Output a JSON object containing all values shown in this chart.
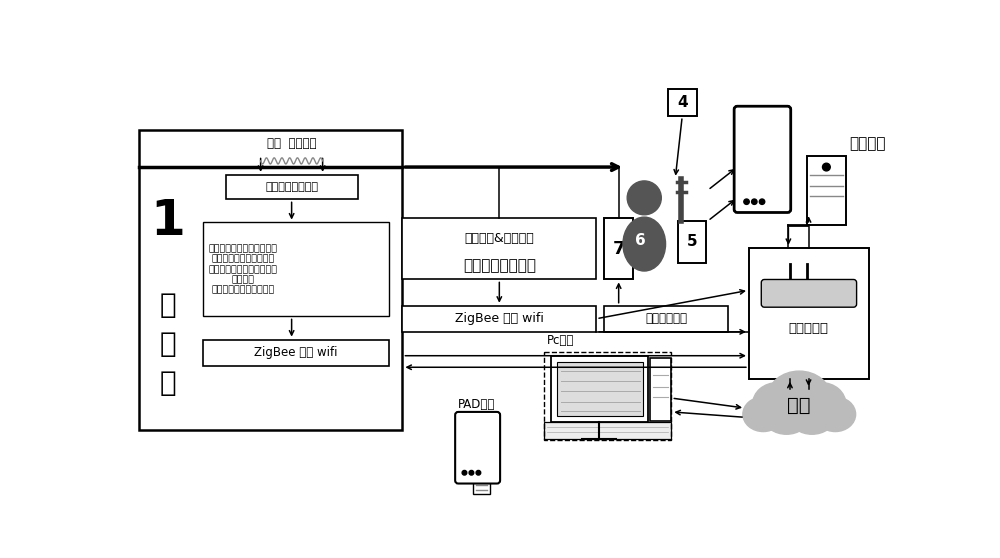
{
  "bg_color": "#ffffff",
  "box_signal1": "信号处理控制电路",
  "box_params": "实际的呼吸频率、潮气量、\n分钟通气量、吸气压力、\n呼气压力、压力上升时间、\n漏气量，\n实际有效使用时间等参数",
  "box_zigbee1": "ZigBee 蓝牙 wifi",
  "box_oxygen_signal_l1": "氧气浓度&氧气流量",
  "box_oxygen_signal_l2": "信号处理控制电路",
  "box_zigbee2": "ZigBee 蓝牙 wifi",
  "box_oxygen_source": "氧气（氧源）",
  "box_router": "智能路由器",
  "label_monitor": "监控终端",
  "label_cloud": "云端",
  "label_pc": "Pc电脑",
  "label_pad": "PAD电脑",
  "label_flow": "流速  压力波形",
  "num4": "4",
  "num5": "5",
  "num6": "6",
  "num7": "7",
  "label_1": "1",
  "label_huxi": "呼\n吸\n机"
}
